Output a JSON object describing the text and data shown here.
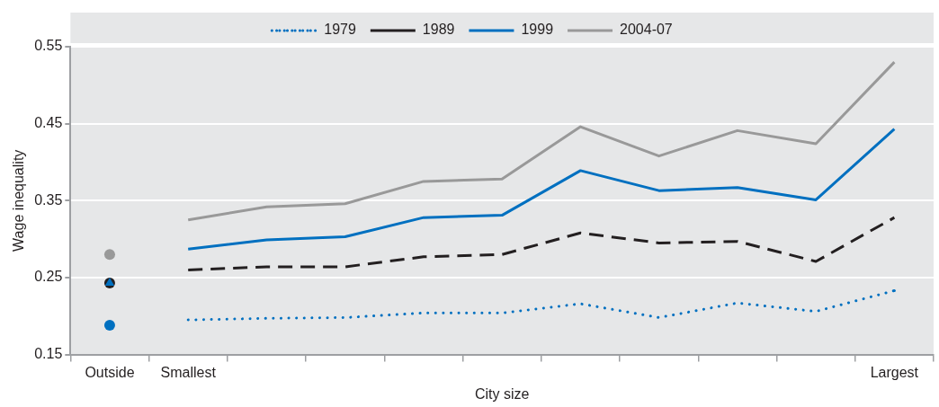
{
  "chart_data": {
    "type": "line",
    "xlabel": "City size",
    "ylabel": "Wage inequality",
    "categories": [
      "Outside",
      "Smallest",
      null,
      null,
      null,
      null,
      null,
      null,
      null,
      null,
      "Largest"
    ],
    "ylim": [
      0.15,
      0.55
    ],
    "yticks": [
      0.15,
      0.25,
      0.35,
      0.45,
      0.55
    ],
    "grid": "y",
    "legend": "top",
    "series": [
      {
        "name": "1979",
        "color": "#0070c0",
        "line_style": "dotted",
        "marker": "none",
        "values": [
          null,
          0.195,
          0.197,
          0.198,
          0.204,
          0.204,
          0.216,
          0.198,
          0.217,
          0.206,
          0.233
        ]
      },
      {
        "name": "1989",
        "color": "#231f20",
        "line_style": "dashed",
        "marker": "none",
        "values": [
          null,
          0.26,
          0.264,
          0.264,
          0.277,
          0.28,
          0.308,
          0.295,
          0.297,
          0.271,
          0.328
        ]
      },
      {
        "name": "1999",
        "color": "#0070c0",
        "line_style": "solid",
        "marker": "none",
        "values": [
          null,
          0.287,
          0.299,
          0.303,
          0.328,
          0.331,
          0.389,
          0.363,
          0.367,
          0.351,
          0.443
        ]
      },
      {
        "name": "2004-07",
        "color": "#999999",
        "line_style": "solid",
        "marker": "none",
        "values": [
          null,
          0.325,
          0.342,
          0.346,
          0.375,
          0.378,
          0.446,
          0.408,
          0.441,
          0.424,
          0.53
        ]
      },
      {
        "type": "scatter",
        "x": [
          "Outside"
        ],
        "values": [
          0.188
        ],
        "color": "#0070c0",
        "marker": "circle"
      },
      {
        "type": "scatter",
        "x": [
          "Outside"
        ],
        "values": [
          0.243
        ],
        "color": "#231f20",
        "marker": "circle"
      },
      {
        "type": "scatter",
        "x": [
          "Outside"
        ],
        "values": [
          0.243
        ],
        "color": "#0070c0",
        "marker": "triangle"
      },
      {
        "type": "scatter",
        "x": [
          "Outside"
        ],
        "values": [
          0.28
        ],
        "color": "#999999",
        "marker": "circle"
      }
    ]
  }
}
